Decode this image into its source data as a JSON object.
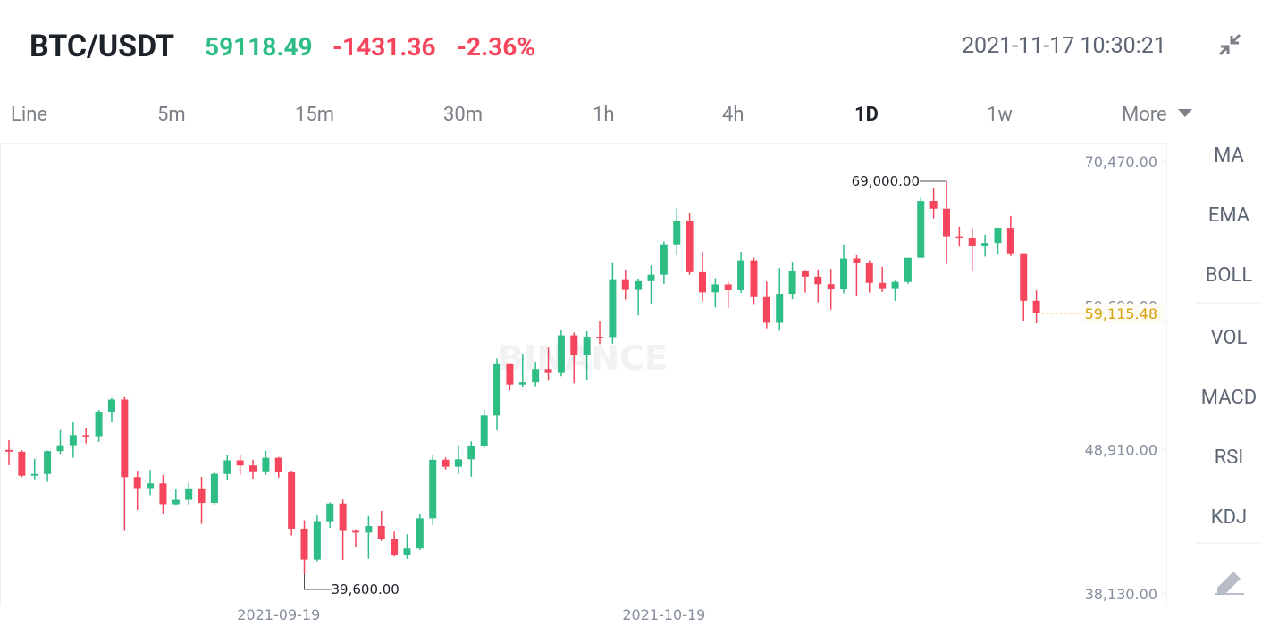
{
  "header": {
    "symbol": "BTC/USDT",
    "last_price": "59118.49",
    "change": "-1431.36",
    "change_percent": "-2.36%",
    "timestamp": "2021-11-17 10:30:21"
  },
  "tabs": [
    "Line",
    "5m",
    "15m",
    "30m",
    "1h",
    "4h",
    "1D",
    "1w",
    "More"
  ],
  "active_tab": "1D",
  "indicators": [
    "MA",
    "EMA",
    "BOLL",
    "VOL",
    "MACD",
    "RSI",
    "KDJ"
  ],
  "chart_data": {
    "type": "candlestick",
    "watermark": "BINANCE",
    "categories": [
      null,
      null,
      null,
      null,
      null,
      null,
      null,
      null,
      null,
      null,
      null,
      null,
      null,
      null,
      null,
      null,
      null,
      null,
      null,
      null,
      null,
      "2021-09-19",
      null,
      null,
      null,
      null,
      null,
      null,
      null,
      null,
      null,
      null,
      null,
      null,
      null,
      null,
      null,
      null,
      null,
      null,
      null,
      null,
      null,
      null,
      null,
      null,
      null,
      null,
      null,
      null,
      null,
      "2021-10-19",
      null,
      null,
      null,
      null,
      null,
      null,
      null,
      null,
      null,
      null,
      null,
      null,
      null,
      null,
      null,
      null,
      null,
      null,
      null,
      null,
      null,
      null,
      null,
      null,
      null,
      null,
      null,
      null,
      null
    ],
    "open": [
      48897,
      48767,
      46970,
      47100,
      48810,
      49246,
      50000,
      49918,
      51756,
      52666,
      46868,
      46048,
      46395,
      44842,
      45173,
      46026,
      44950,
      47103,
      48121,
      47737,
      47299,
      48314,
      47253,
      43012,
      40693,
      43560,
      44897,
      42839,
      42716,
      43208,
      42235,
      41025,
      41523,
      43790,
      48166,
      47639,
      48200,
      49225,
      51471,
      55315,
      53785,
      53955,
      54949,
      54659,
      57471,
      55996,
      57370,
      57347,
      61672,
      60875,
      61528,
      62005,
      64280,
      66002,
      62193,
      60689,
      61286,
      60852,
      63078,
      60328,
      58413,
      60575,
      62253,
      61859,
      61300,
      60911,
      63220,
      62896,
      61395,
      60940,
      61470,
      63273,
      67526,
      66947,
      64882,
      64775,
      64122,
      64380,
      65519,
      63606,
      60058
    ],
    "high": [
      49632,
      48888,
      48246,
      48843,
      50450,
      51000,
      50558,
      51900,
      52780,
      52920,
      47340,
      47399,
      47033,
      45987,
      46460,
      46880,
      47250,
      48500,
      48500,
      48170,
      48843,
      48370,
      47358,
      43639,
      44000,
      44978,
      45200,
      42966,
      43950,
      44350,
      42790,
      42590,
      44132,
      48495,
      48336,
      49228,
      49536,
      51886,
      55750,
      55332,
      56100,
      55489,
      56561,
      57839,
      57680,
      57777,
      58532,
      62933,
      62378,
      61718,
      62695,
      64486,
      67000,
      66639,
      63732,
      61747,
      61500,
      63710,
      63293,
      61496,
      62499,
      62980,
      62359,
      62405,
      62437,
      64270,
      63500,
      63086,
      62595,
      61560,
      63286,
      67789,
      68524,
      69000,
      65600,
      65500,
      65000,
      65550,
      66401,
      63617,
      60840
    ],
    "low": [
      47762,
      46853,
      46700,
      46512,
      48584,
      48316,
      49385,
      49500,
      50969,
      42843,
      44412,
      45514,
      44132,
      44722,
      44742,
      43370,
      44750,
      46682,
      47020,
      46750,
      47033,
      46829,
      42500,
      39600,
      40565,
      43069,
      40675,
      41646,
      40750,
      42098,
      40931,
      40753,
      41410,
      43283,
      47430,
      47088,
      46891,
      49021,
      50382,
      53357,
      53618,
      53661,
      54080,
      54415,
      53879,
      54167,
      56818,
      56850,
      60150,
      58963,
      59844,
      61322,
      63481,
      62000,
      60000,
      59562,
      59510,
      60650,
      59817,
      58000,
      57820,
      60174,
      60673,
      59945,
      59405,
      60624,
      60382,
      60677,
      60721,
      60050,
      61322,
      63273,
      66222,
      62822,
      64100,
      62278,
      63360,
      63576,
      63400,
      58574,
      58373
    ],
    "close": [
      48767,
      46970,
      47100,
      48810,
      49246,
      49999,
      49915,
      51756,
      52663,
      46863,
      46048,
      46395,
      44850,
      45174,
      46026,
      44940,
      47111,
      48121,
      47737,
      47300,
      48314,
      47253,
      43012,
      40693,
      43575,
      44896,
      42839,
      42716,
      43208,
      42235,
      41034,
      41522,
      43790,
      48165,
      47639,
      48200,
      49224,
      51471,
      55315,
      53785,
      53951,
      54949,
      54659,
      57471,
      55996,
      57367,
      57347,
      61672,
      60875,
      61528,
      62009,
      64280,
      66001,
      62193,
      60688,
      61286,
      60852,
      63078,
      60328,
      58413,
      60575,
      62253,
      61859,
      61300,
      60911,
      63219,
      62896,
      61395,
      60937,
      61470,
      63273,
      67525,
      66947,
      64882,
      64774,
      64122,
      64380,
      65519,
      63607,
      60058,
      59115.48
    ],
    "up_color": "#2ebd85",
    "down_color": "#f6465d",
    "ylim": [
      37261,
      71740
    ],
    "yticks": [
      {
        "value": 38130,
        "label": "38,130.00"
      },
      {
        "value": 48910,
        "label": "48,910.00"
      },
      {
        "value": 59690,
        "label": "59,690.00"
      },
      {
        "value": 70470,
        "label": "70,470.00"
      }
    ],
    "annotations": [
      {
        "value": 69000,
        "label": "69,000.00"
      },
      {
        "value": 39600,
        "label": "39,600.00"
      }
    ],
    "current_price": {
      "value": 59115.48,
      "label": "59,115.48"
    }
  }
}
